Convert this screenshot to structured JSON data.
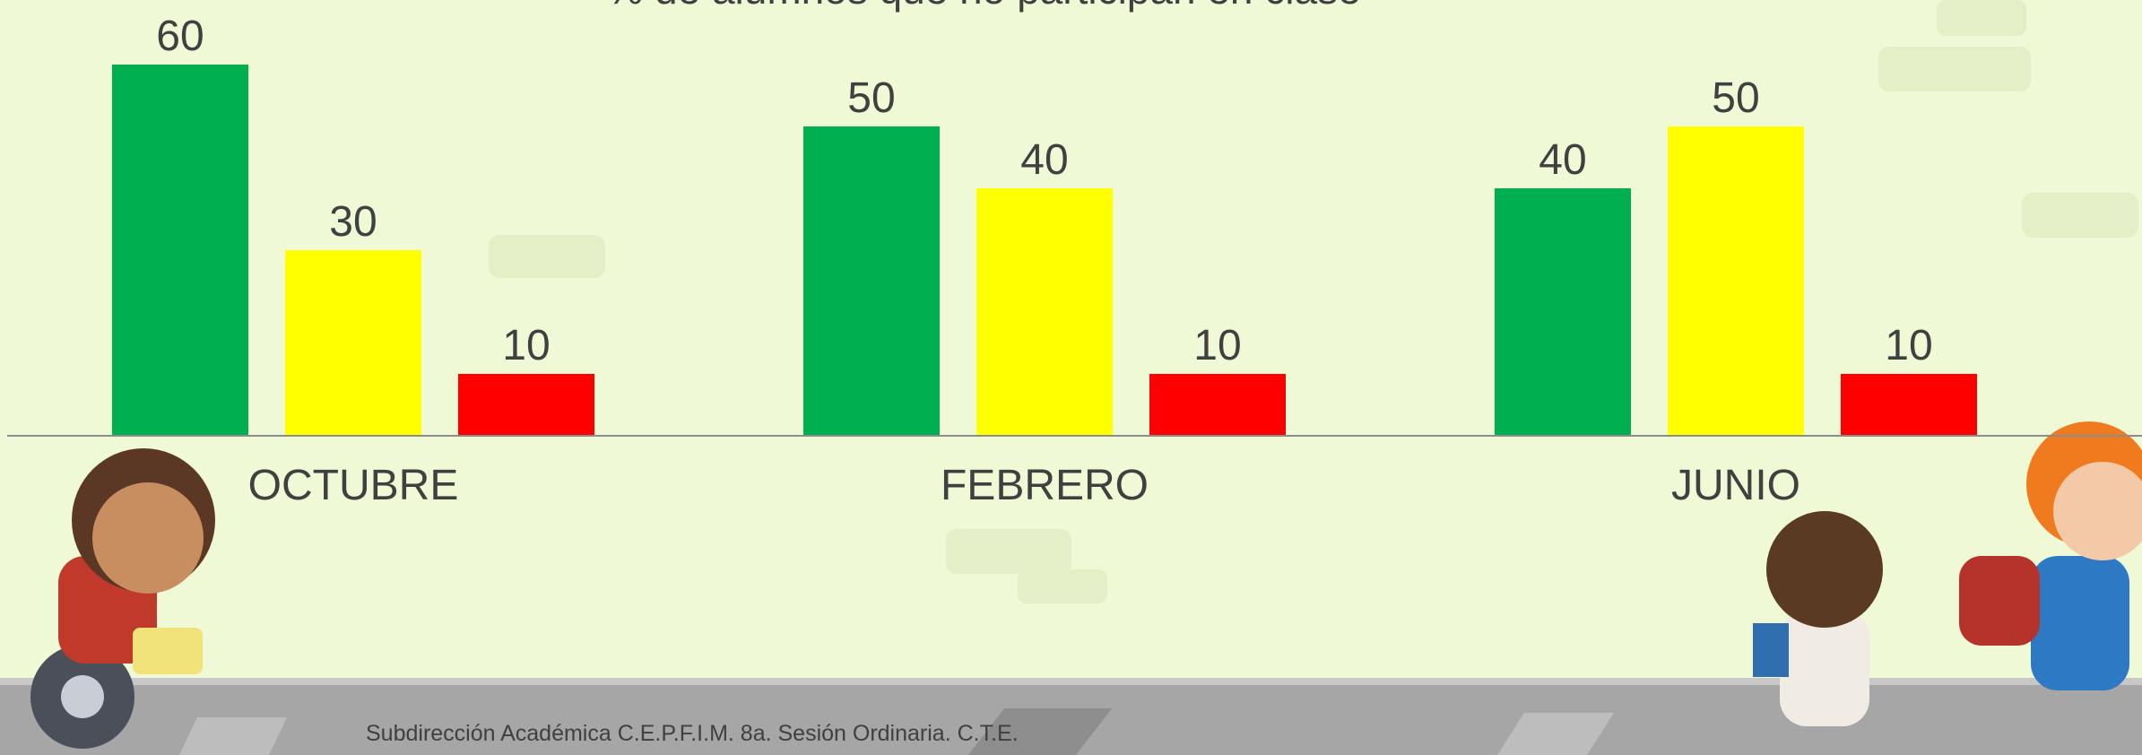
{
  "chart_data": {
    "type": "bar",
    "title": "% de alumnos que no participan en clase",
    "categories": [
      "OCTUBRE",
      "FEBRERO",
      "JUNIO"
    ],
    "series": [
      {
        "color": "#00b050",
        "values": [
          60,
          50,
          40
        ]
      },
      {
        "color": "#ffff00",
        "values": [
          30,
          40,
          50
        ]
      },
      {
        "color": "#ff0000",
        "values": [
          10,
          10,
          10
        ]
      }
    ]
  },
  "footer": "Subdirección Académica C.E.P.F.I.M.  8a. Sesión Ordinaria. C.T.E."
}
